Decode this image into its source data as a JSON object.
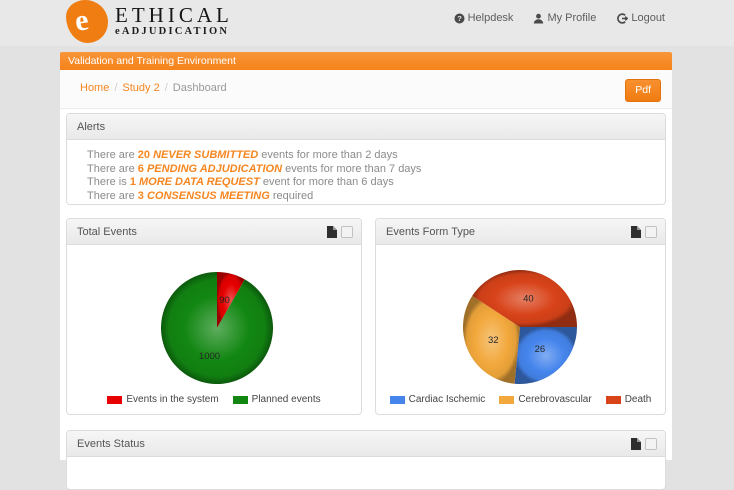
{
  "header": {
    "logo_title": "ETHICAL",
    "logo_subtitle": "eADJUDICATION",
    "logo_glyph": "e",
    "nav": [
      {
        "label": "Helpdesk",
        "icon": "help-icon"
      },
      {
        "label": "My Profile",
        "icon": "user-icon"
      },
      {
        "label": "Logout",
        "icon": "logout-icon"
      }
    ]
  },
  "environment_banner": "Validation and Training Environment",
  "breadcrumb": {
    "home": "Home",
    "study": "Study 2",
    "current": "Dashboard",
    "separator": "/"
  },
  "toolbar": {
    "pdf_label": "Pdf"
  },
  "alerts": {
    "title": "Alerts",
    "items": [
      {
        "prefix": "There are",
        "count": "20",
        "keyword": "NEVER SUBMITTED",
        "suffix": "events for more than 2 days"
      },
      {
        "prefix": "There are",
        "count": "6",
        "keyword": "PENDING ADJUDICATION",
        "suffix": "events for more than 7 days"
      },
      {
        "prefix": "There is",
        "count": "1",
        "keyword": "MORE DATA REQUEST",
        "suffix": "event for more than 6 days"
      },
      {
        "prefix": "There are",
        "count": "3",
        "keyword": "CONSENSUS MEETING",
        "suffix": "required"
      }
    ]
  },
  "panels": {
    "total_events": {
      "title": "Total Events",
      "icons": [
        "report-file-icon",
        "collapse-checkbox"
      ]
    },
    "events_form_type": {
      "title": "Events Form Type",
      "icons": [
        "report-file-icon",
        "collapse-checkbox"
      ]
    },
    "events_status": {
      "title": "Events Status",
      "icons": [
        "report-file-icon",
        "collapse-checkbox"
      ]
    }
  },
  "accent_color": "#f6861f",
  "chart_data": [
    {
      "type": "pie",
      "title": "Total Events",
      "labels": [
        "Events in the system",
        "Planned events"
      ],
      "values": [
        90,
        1000
      ],
      "colors": [
        "#e60000",
        "#128712"
      ],
      "start_angle": -90,
      "legend_position": "bottom"
    },
    {
      "type": "pie",
      "title": "Events Form Type",
      "labels": [
        "Cardiac Ischemic",
        "Cerebrovascular",
        "Death"
      ],
      "values": [
        26,
        32,
        40
      ],
      "colors": [
        "#4585ec",
        "#f2a83c",
        "#d8431a"
      ],
      "start_angle": 0,
      "legend_position": "bottom"
    }
  ]
}
